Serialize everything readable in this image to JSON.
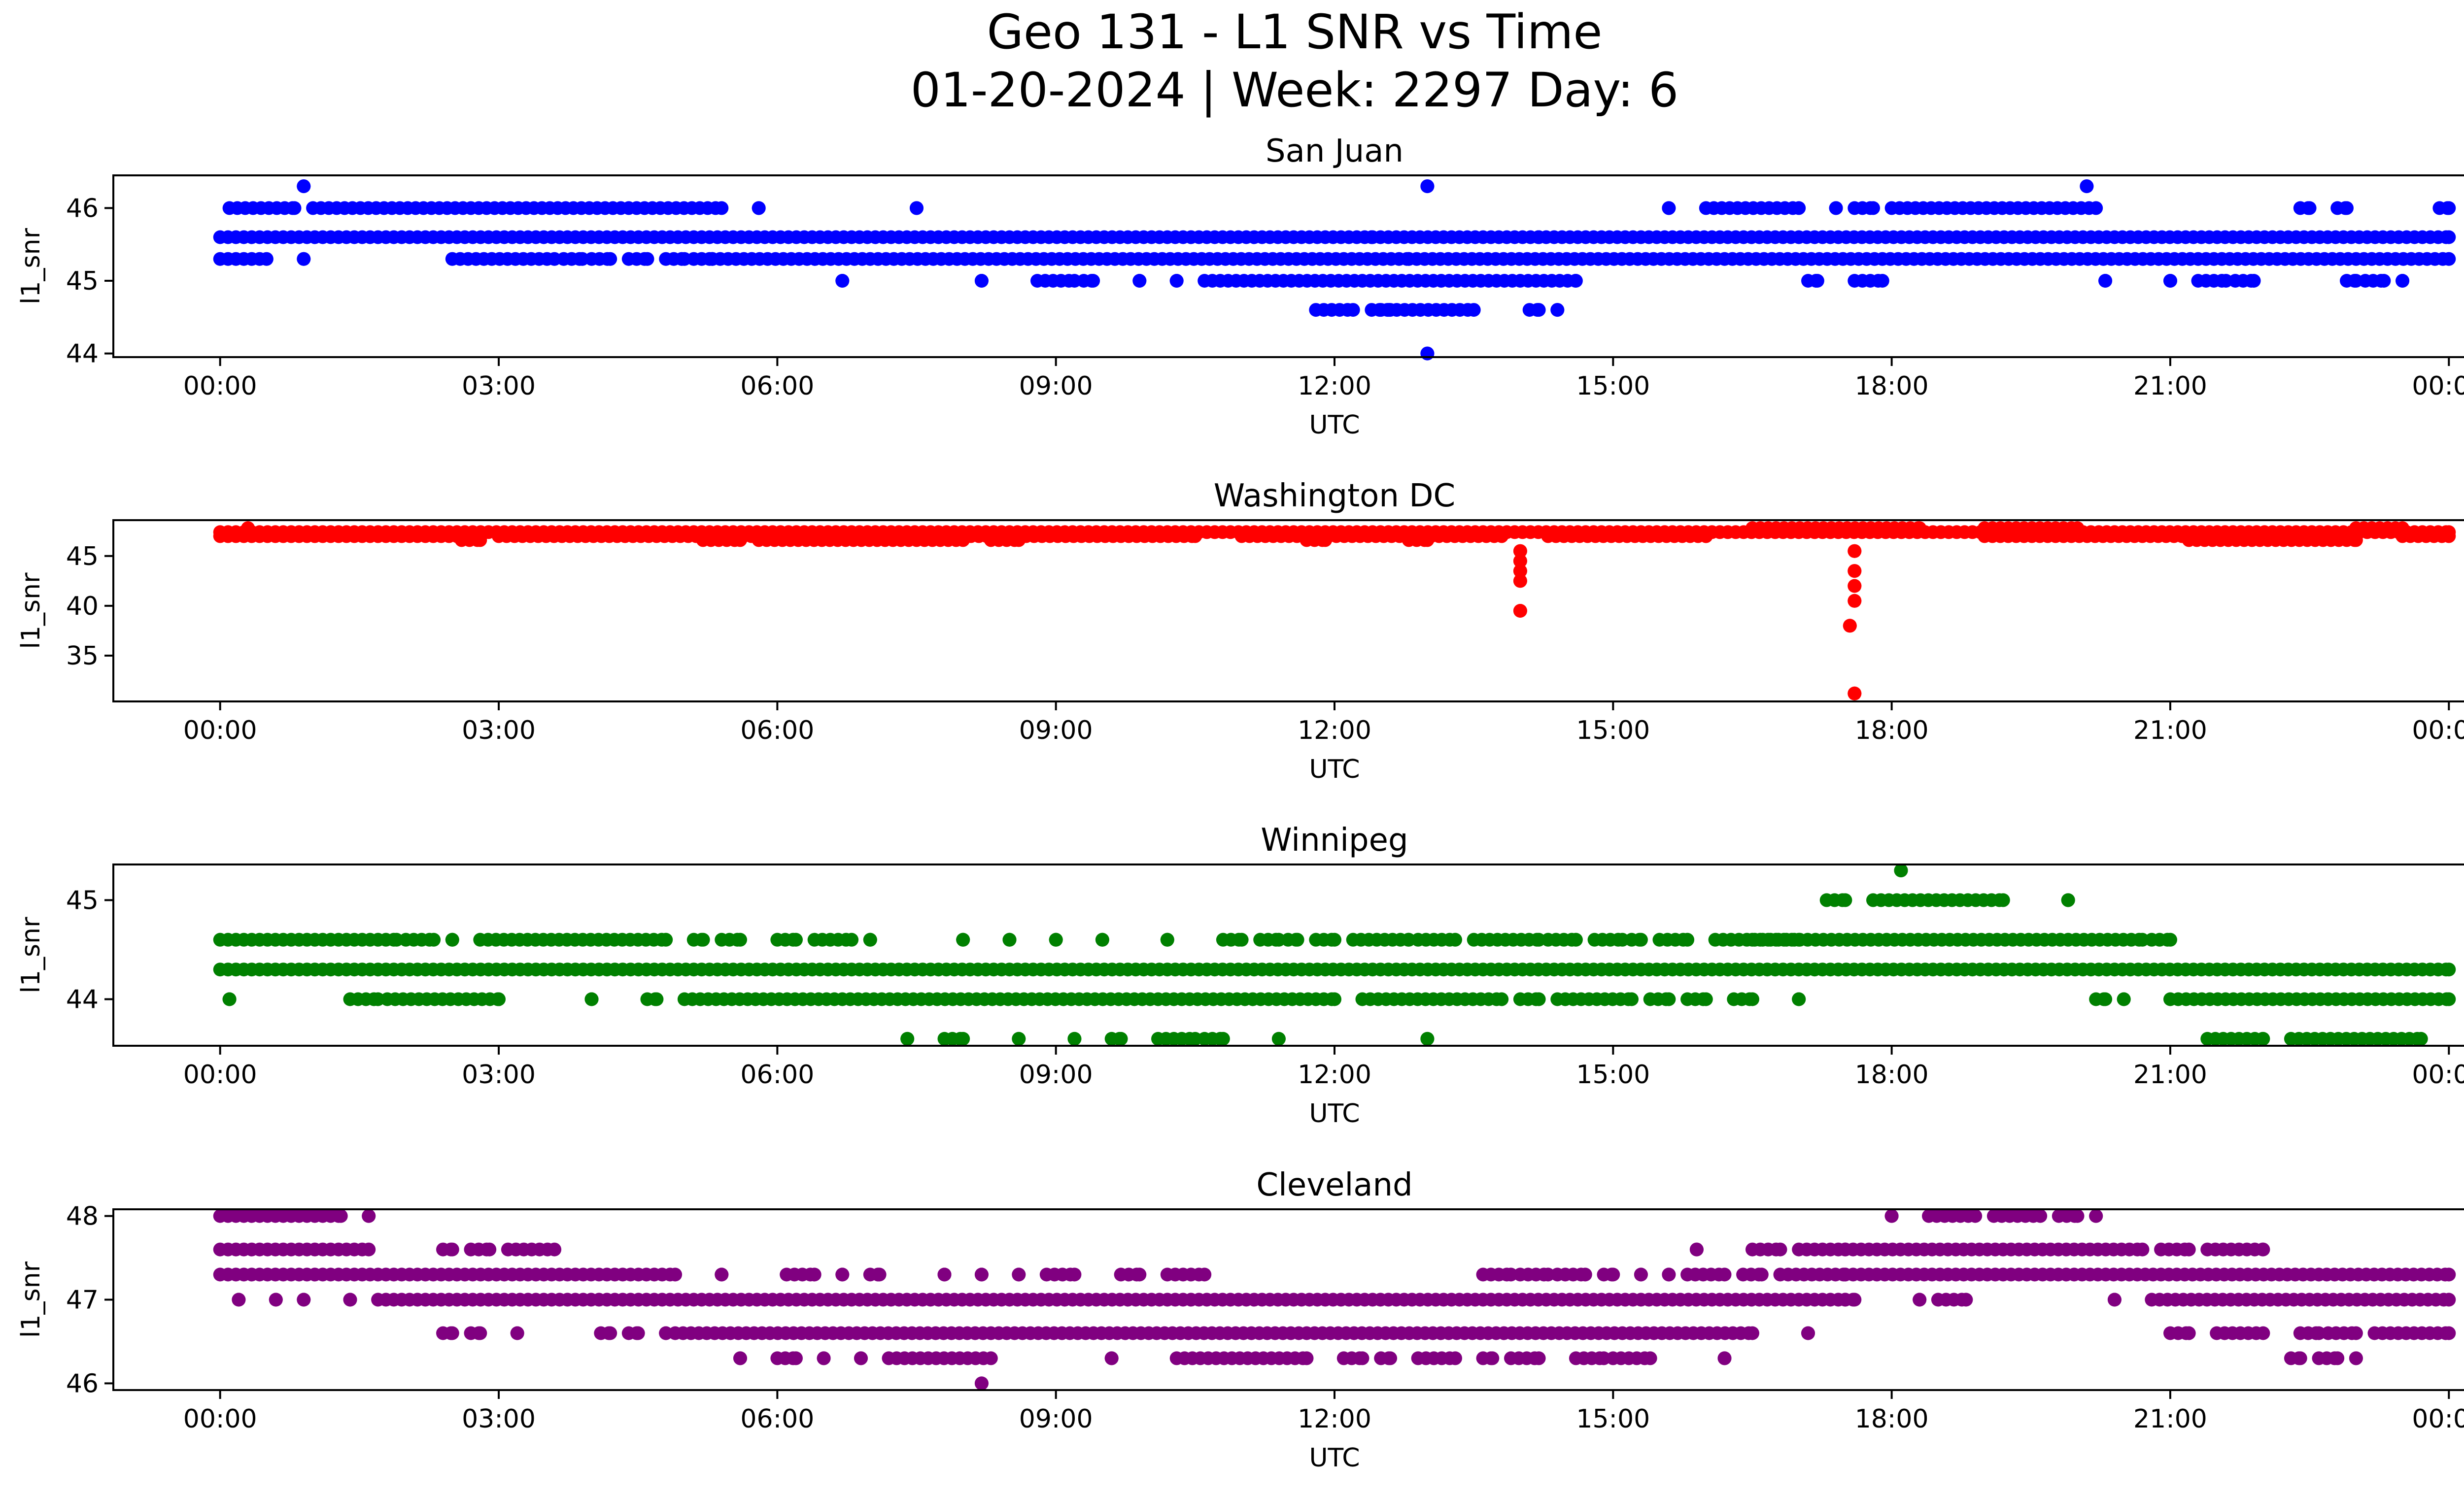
{
  "figure": {
    "title_line1": "Geo 131 - L1 SNR vs Time",
    "title_line2": "01-20-2024 | Week: 2297 Day: 6"
  },
  "chart_data": [
    {
      "type": "scatter",
      "title": "San Juan",
      "xlabel": "UTC",
      "ylabel": "l1_snr",
      "color": "#0000ff",
      "x_range_hours": [
        -1.15,
        25.15
      ],
      "x_ticks": [
        "00:00",
        "03:00",
        "06:00",
        "09:00",
        "12:00",
        "15:00",
        "18:00",
        "21:00",
        "00:00"
      ],
      "ylim": [
        43.95,
        46.45
      ],
      "y_ticks": [
        44,
        45,
        46
      ],
      "series": [
        {
          "y": 45.6,
          "segments": [
            [
              0.0,
              24.0
            ]
          ]
        },
        {
          "y": 45.3,
          "segments": [
            [
              0.0,
              0.5
            ],
            [
              0.9,
              0.9
            ],
            [
              2.5,
              3.6
            ],
            [
              3.7,
              3.9
            ],
            [
              4.0,
              4.2
            ],
            [
              4.4,
              4.6
            ],
            [
              4.8,
              5.0
            ],
            [
              5.1,
              5.3
            ],
            [
              5.3,
              12.8
            ],
            [
              12.8,
              24.0
            ]
          ]
        },
        {
          "y": 46.0,
          "segments": [
            [
              0.1,
              0.8
            ],
            [
              1.0,
              5.4
            ],
            [
              5.8,
              5.8
            ],
            [
              7.5,
              7.5
            ],
            [
              15.6,
              15.6
            ],
            [
              16.0,
              17.0
            ],
            [
              17.4,
              17.4
            ],
            [
              17.6,
              17.8
            ],
            [
              18.0,
              20.2
            ],
            [
              22.4,
              22.5
            ],
            [
              22.8,
              22.9
            ],
            [
              23.9,
              24.0
            ]
          ]
        },
        {
          "y": 45.0,
          "segments": [
            [
              6.7,
              6.7
            ],
            [
              8.2,
              8.2
            ],
            [
              8.8,
              9.2
            ],
            [
              9.3,
              9.4
            ],
            [
              9.9,
              9.9
            ],
            [
              10.3,
              10.3
            ],
            [
              10.6,
              14.6
            ],
            [
              17.1,
              17.2
            ],
            [
              17.6,
              17.9
            ],
            [
              20.3,
              20.3
            ],
            [
              21.0,
              21.0
            ],
            [
              21.3,
              21.6
            ],
            [
              21.7,
              21.9
            ],
            [
              22.9,
              23.0
            ],
            [
              23.1,
              23.3
            ],
            [
              23.5,
              23.5
            ]
          ]
        },
        {
          "y": 44.6,
          "segments": [
            [
              11.8,
              12.2
            ],
            [
              12.4,
              12.6
            ],
            [
              12.5,
              13.5
            ],
            [
              14.1,
              14.2
            ],
            [
              14.4,
              14.4
            ]
          ]
        },
        {
          "y": 46.3,
          "segments": [
            [
              0.9,
              0.9
            ],
            [
              13.0,
              13.0
            ],
            [
              20.1,
              20.1
            ]
          ]
        },
        {
          "y": 44.0,
          "segments": [
            [
              13.0,
              13.0
            ]
          ]
        },
        {
          "y": 45.6,
          "segments": [
            [
              12.4,
              12.4
            ],
            [
              14.2,
              14.2
            ]
          ]
        }
      ]
    },
    {
      "type": "scatter",
      "title": "Washington DC",
      "xlabel": "UTC",
      "ylabel": "l1_snr",
      "color": "#ff0000",
      "x_range_hours": [
        -1.15,
        25.15
      ],
      "x_ticks": [
        "00:00",
        "03:00",
        "06:00",
        "09:00",
        "12:00",
        "15:00",
        "18:00",
        "21:00",
        "00:00"
      ],
      "ylim": [
        30.4,
        48.6
      ],
      "y_ticks": [
        35,
        40,
        45
      ],
      "series": [
        {
          "y": 47.4,
          "segments": [
            [
              0.0,
              24.0
            ]
          ]
        },
        {
          "y": 47.0,
          "segments": [
            [
              0.0,
              2.8
            ],
            [
              3.0,
              7.5
            ],
            [
              8.0,
              10.5
            ],
            [
              11.0,
              13.8
            ],
            [
              14.3,
              16.0
            ],
            [
              19.0,
              21.5
            ],
            [
              21.6,
              23.0
            ],
            [
              23.5,
              24.0
            ]
          ]
        },
        {
          "y": 46.6,
          "segments": [
            [
              2.6,
              2.8
            ],
            [
              5.2,
              5.6
            ],
            [
              5.8,
              8.0
            ],
            [
              8.3,
              8.6
            ],
            [
              11.7,
              11.9
            ],
            [
              12.8,
              13.0
            ],
            [
              21.2,
              23.0
            ]
          ]
        },
        {
          "y": 47.8,
          "segments": [
            [
              0.3,
              0.3
            ],
            [
              16.5,
              18.3
            ],
            [
              19.0,
              20.0
            ],
            [
              23.0,
              23.5
            ]
          ]
        },
        {
          "y": 45.5,
          "segments": [
            [
              14.0,
              14.0
            ],
            [
              17.6,
              17.6
            ]
          ]
        },
        {
          "y": 44.5,
          "segments": [
            [
              14.0,
              14.0
            ]
          ]
        },
        {
          "y": 43.5,
          "segments": [
            [
              14.0,
              14.0
            ],
            [
              17.6,
              17.6
            ]
          ]
        },
        {
          "y": 42.5,
          "segments": [
            [
              14.0,
              14.0
            ]
          ]
        },
        {
          "y": 42.0,
          "segments": [
            [
              17.6,
              17.6
            ]
          ]
        },
        {
          "y": 40.5,
          "segments": [
            [
              17.6,
              17.6
            ]
          ]
        },
        {
          "y": 39.5,
          "segments": [
            [
              14.0,
              14.0
            ]
          ]
        },
        {
          "y": 38.0,
          "segments": [
            [
              17.55,
              17.55
            ]
          ]
        },
        {
          "y": 31.2,
          "segments": [
            [
              17.6,
              17.6
            ]
          ]
        }
      ]
    },
    {
      "type": "scatter",
      "title": "Winnipeg",
      "xlabel": "UTC",
      "ylabel": "l1_snr",
      "color": "#008000",
      "x_range_hours": [
        -1.15,
        25.15
      ],
      "x_ticks": [
        "00:00",
        "03:00",
        "06:00",
        "09:00",
        "12:00",
        "15:00",
        "18:00",
        "21:00",
        "00:00"
      ],
      "ylim": [
        43.53,
        45.36
      ],
      "y_ticks": [
        44,
        45
      ],
      "series": [
        {
          "y": 44.3,
          "segments": [
            [
              0.0,
              24.0
            ]
          ]
        },
        {
          "y": 44.6,
          "segments": [
            [
              0.0,
              1.9
            ],
            [
              2.0,
              2.3
            ],
            [
              2.5,
              2.5
            ],
            [
              2.8,
              4.8
            ],
            [
              5.1,
              5.2
            ],
            [
              5.4,
              5.6
            ],
            [
              6.0,
              6.2
            ],
            [
              6.4,
              6.8
            ],
            [
              7.0,
              7.0
            ],
            [
              8.0,
              8.0
            ],
            [
              8.5,
              8.5
            ],
            [
              9.0,
              9.0
            ],
            [
              9.5,
              9.5
            ],
            [
              10.2,
              10.2
            ],
            [
              10.8,
              11.0
            ],
            [
              11.2,
              11.4
            ],
            [
              11.5,
              11.6
            ],
            [
              11.8,
              12.0
            ],
            [
              12.2,
              12.8
            ],
            [
              12.9,
              13.3
            ],
            [
              13.5,
              14.2
            ],
            [
              14.3,
              14.6
            ],
            [
              14.8,
              15.1
            ],
            [
              15.2,
              15.3
            ],
            [
              15.5,
              15.8
            ],
            [
              16.1,
              17.0
            ],
            [
              16.5,
              20.7
            ],
            [
              20.8,
              21.0
            ]
          ]
        },
        {
          "y": 44.0,
          "segments": [
            [
              0.1,
              0.1
            ],
            [
              1.4,
              1.7
            ],
            [
              1.8,
              3.0
            ],
            [
              4.0,
              4.0
            ],
            [
              4.6,
              4.7
            ],
            [
              5.0,
              12.0
            ],
            [
              12.3,
              13.8
            ],
            [
              14.0,
              14.2
            ],
            [
              14.4,
              15.2
            ],
            [
              15.4,
              15.6
            ],
            [
              15.8,
              16.0
            ],
            [
              16.3,
              16.5
            ],
            [
              17.0,
              17.0
            ],
            [
              20.2,
              20.3
            ],
            [
              20.5,
              20.5
            ],
            [
              21.0,
              24.0
            ]
          ]
        },
        {
          "y": 45.0,
          "segments": [
            [
              17.3,
              17.5
            ],
            [
              17.8,
              19.2
            ],
            [
              19.9,
              19.9
            ]
          ]
        },
        {
          "y": 43.6,
          "segments": [
            [
              7.4,
              7.4
            ],
            [
              7.8,
              8.0
            ],
            [
              8.6,
              8.6
            ],
            [
              9.2,
              9.2
            ],
            [
              9.6,
              9.7
            ],
            [
              10.1,
              10.5
            ],
            [
              10.6,
              10.8
            ],
            [
              11.4,
              11.4
            ],
            [
              13.0,
              13.0
            ],
            [
              21.4,
              22.0
            ],
            [
              22.3,
              23.7
            ]
          ]
        },
        {
          "y": 45.3,
          "segments": [
            [
              18.1,
              18.1
            ]
          ]
        }
      ]
    },
    {
      "type": "scatter",
      "title": "Cleveland",
      "xlabel": "UTC",
      "ylabel": "l1_snr",
      "color": "#800080",
      "x_range_hours": [
        -1.15,
        25.15
      ],
      "x_ticks": [
        "00:00",
        "03:00",
        "06:00",
        "09:00",
        "12:00",
        "15:00",
        "18:00",
        "21:00",
        "00:00"
      ],
      "ylim": [
        45.92,
        48.08
      ],
      "y_ticks": [
        46,
        47,
        48
      ],
      "series": [
        {
          "y": 47.3,
          "segments": [
            [
              0.0,
              4.9
            ],
            [
              5.4,
              5.4
            ],
            [
              6.1,
              6.4
            ],
            [
              6.7,
              6.7
            ],
            [
              7.0,
              7.1
            ],
            [
              7.8,
              7.8
            ],
            [
              8.2,
              8.2
            ],
            [
              8.6,
              8.6
            ],
            [
              8.9,
              9.2
            ],
            [
              9.7,
              9.9
            ],
            [
              10.2,
              10.6
            ],
            [
              13.6,
              13.9
            ],
            [
              14.0,
              14.3
            ],
            [
              14.4,
              14.7
            ],
            [
              14.9,
              15.0
            ],
            [
              15.3,
              15.3
            ],
            [
              15.6,
              15.6
            ],
            [
              15.8,
              16.2
            ],
            [
              16.4,
              16.6
            ],
            [
              16.8,
              17.5
            ],
            [
              17.5,
              24.0
            ]
          ]
        },
        {
          "y": 47.6,
          "segments": [
            [
              0.0,
              1.6
            ],
            [
              2.4,
              2.5
            ],
            [
              2.7,
              2.9
            ],
            [
              3.1,
              3.6
            ],
            [
              15.9,
              15.9
            ],
            [
              16.5,
              16.8
            ],
            [
              17.0,
              17.5
            ],
            [
              17.5,
              20.7
            ],
            [
              20.9,
              21.2
            ],
            [
              21.4,
              22.0
            ]
          ]
        },
        {
          "y": 48.0,
          "segments": [
            [
              0.0,
              1.3
            ],
            [
              1.6,
              1.6
            ],
            [
              18.0,
              18.0
            ],
            [
              18.4,
              18.9
            ],
            [
              19.1,
              19.6
            ],
            [
              19.8,
              20.0
            ],
            [
              20.2,
              20.2
            ]
          ]
        },
        {
          "y": 47.0,
          "segments": [
            [
              0.2,
              0.2
            ],
            [
              0.6,
              0.6
            ],
            [
              0.9,
              0.9
            ],
            [
              1.4,
              1.4
            ],
            [
              1.7,
              17.5
            ],
            [
              17.5,
              17.6
            ],
            [
              18.3,
              18.3
            ],
            [
              18.5,
              18.8
            ],
            [
              20.4,
              20.4
            ],
            [
              20.8,
              24.0
            ]
          ]
        },
        {
          "y": 46.6,
          "segments": [
            [
              2.4,
              2.5
            ],
            [
              2.7,
              2.8
            ],
            [
              3.2,
              3.2
            ],
            [
              4.1,
              4.2
            ],
            [
              4.4,
              4.5
            ],
            [
              4.8,
              4.8
            ],
            [
              4.9,
              16.5
            ],
            [
              17.1,
              17.1
            ],
            [
              21.0,
              21.2
            ],
            [
              21.5,
              22.0
            ],
            [
              22.4,
              22.6
            ],
            [
              22.7,
              23.0
            ],
            [
              23.2,
              24.0
            ]
          ]
        },
        {
          "y": 46.3,
          "segments": [
            [
              5.6,
              5.6
            ],
            [
              6.0,
              6.2
            ],
            [
              6.5,
              6.5
            ],
            [
              6.9,
              6.9
            ],
            [
              7.2,
              8.3
            ],
            [
              9.6,
              9.6
            ],
            [
              10.3,
              11.7
            ],
            [
              12.1,
              12.3
            ],
            [
              12.5,
              12.6
            ],
            [
              12.9,
              13.3
            ],
            [
              13.6,
              13.7
            ],
            [
              13.9,
              14.2
            ],
            [
              14.6,
              14.9
            ],
            [
              15.0,
              15.4
            ],
            [
              16.2,
              16.2
            ],
            [
              22.3,
              22.4
            ],
            [
              22.6,
              22.8
            ],
            [
              23.0,
              23.0
            ]
          ]
        },
        {
          "y": 46.0,
          "segments": [
            [
              8.2,
              8.2
            ]
          ]
        }
      ]
    }
  ]
}
